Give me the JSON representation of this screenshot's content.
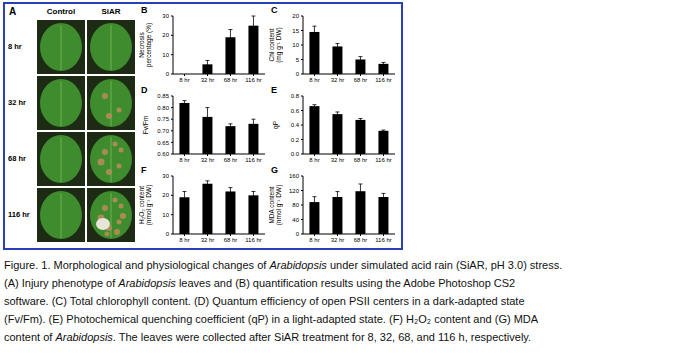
{
  "panel_a": {
    "letter": "A",
    "columns": [
      "Control",
      "SiAR"
    ],
    "rows": [
      "8 hr",
      "32 hr",
      "68 hr",
      "116 hr"
    ]
  },
  "chart_data": [
    {
      "panel": "B",
      "type": "bar",
      "ylabel": "Necrosis percentage (%)",
      "categories": [
        "8 hr",
        "32 hr",
        "68 hr",
        "116 hr"
      ],
      "values": [
        0,
        5,
        19,
        25
      ],
      "errors": [
        0,
        2,
        4,
        5
      ],
      "color": "#000000",
      "ylim": [
        0,
        30
      ],
      "yticks": [
        0,
        10,
        20,
        30
      ]
    },
    {
      "panel": "C",
      "type": "bar",
      "ylabel": "Chl content (mg g⁻¹ DW)",
      "categories": [
        "8 hr",
        "32 hr",
        "68 hr",
        "116 hr"
      ],
      "values": [
        14.5,
        9.5,
        5,
        3.5
      ],
      "errors": [
        2,
        1,
        1,
        0.5
      ],
      "color": "#000000",
      "ylim": [
        0,
        20
      ],
      "yticks": [
        0,
        5,
        10,
        15,
        20
      ]
    },
    {
      "panel": "D",
      "type": "bar",
      "ylabel": "Fv/Fm",
      "categories": [
        "8 hr",
        "32 hr",
        "68 hr",
        "116 hr"
      ],
      "values": [
        0.82,
        0.76,
        0.72,
        0.73
      ],
      "errors": [
        0.01,
        0.04,
        0.01,
        0.02
      ],
      "color": "#000000",
      "ylim": [
        0.6,
        0.85
      ],
      "yticks": [
        {
          "value": 0.6,
          "label": "0.60"
        },
        {
          "value": 0.65,
          "label": "0.65"
        },
        {
          "value": 0.7,
          "label": "0.70"
        },
        {
          "value": 0.75,
          "label": "0.75"
        },
        {
          "value": 0.8,
          "label": "0.80"
        },
        {
          "value": 0.85,
          "label": "0.85"
        }
      ]
    },
    {
      "panel": "E",
      "type": "bar",
      "ylabel": "qP",
      "categories": [
        "8 hr",
        "32 hr",
        "68 hr",
        "116 hr"
      ],
      "values": [
        0.66,
        0.55,
        0.47,
        0.32
      ],
      "errors": [
        0.02,
        0.03,
        0.02,
        0.01
      ],
      "color": "#000000",
      "ylim": [
        0,
        0.8
      ],
      "yticks": [
        {
          "value": 0,
          "label": "0.0"
        },
        {
          "value": 0.2,
          "label": "0.2"
        },
        {
          "value": 0.4,
          "label": "0.4"
        },
        {
          "value": 0.6,
          "label": "0.6"
        },
        {
          "value": 0.8,
          "label": "0.8"
        }
      ]
    },
    {
      "panel": "F",
      "type": "bar",
      "ylabel": "H₂O₂ content (nmol g⁻¹ DW)",
      "categories": [
        "8 hr",
        "32 hr",
        "68 hr",
        "116 hr"
      ],
      "values": [
        19,
        26,
        22,
        20
      ],
      "errors": [
        3,
        1.5,
        2,
        2
      ],
      "color": "#000000",
      "ylim": [
        0,
        30
      ],
      "yticks": [
        0,
        10,
        20,
        30
      ]
    },
    {
      "panel": "G",
      "type": "bar",
      "ylabel": "MDA content (nmol g⁻¹ DW)",
      "categories": [
        "8 hr",
        "32 hr",
        "68 hr",
        "116 hr"
      ],
      "values": [
        88,
        102,
        118,
        102
      ],
      "errors": [
        15,
        15,
        20,
        10
      ],
      "color": "#000000",
      "ylim": [
        0,
        160
      ],
      "yticks": [
        0,
        40,
        80,
        120,
        160
      ]
    }
  ],
  "caption": [
    [
      "Figure. 1. Morphological and physiological changes of ",
      "Arabidopsis",
      " under simulated acid rain (SiAR, pH 3.0) stress."
    ],
    [
      "(A) Injury phenotype of ",
      "Arabidopsis",
      " leaves and (B) quantification results using the Adobe Photoshop CS2"
    ],
    [
      "software. (C) Total chlorophyll content. (D) Quantum efficiency of open PSII centers in a dark-adapted state"
    ],
    [
      "(Fv/Fm). (E) Photochemical quenching coefficient (qP) in a light-adapted state. (F) H₂O₂ content and (G) MDA"
    ],
    [
      "content of ",
      "Arabidopsis",
      ". The leaves were collected after SiAR treatment for 8, 32, 68, and 116 h, respectively."
    ]
  ]
}
